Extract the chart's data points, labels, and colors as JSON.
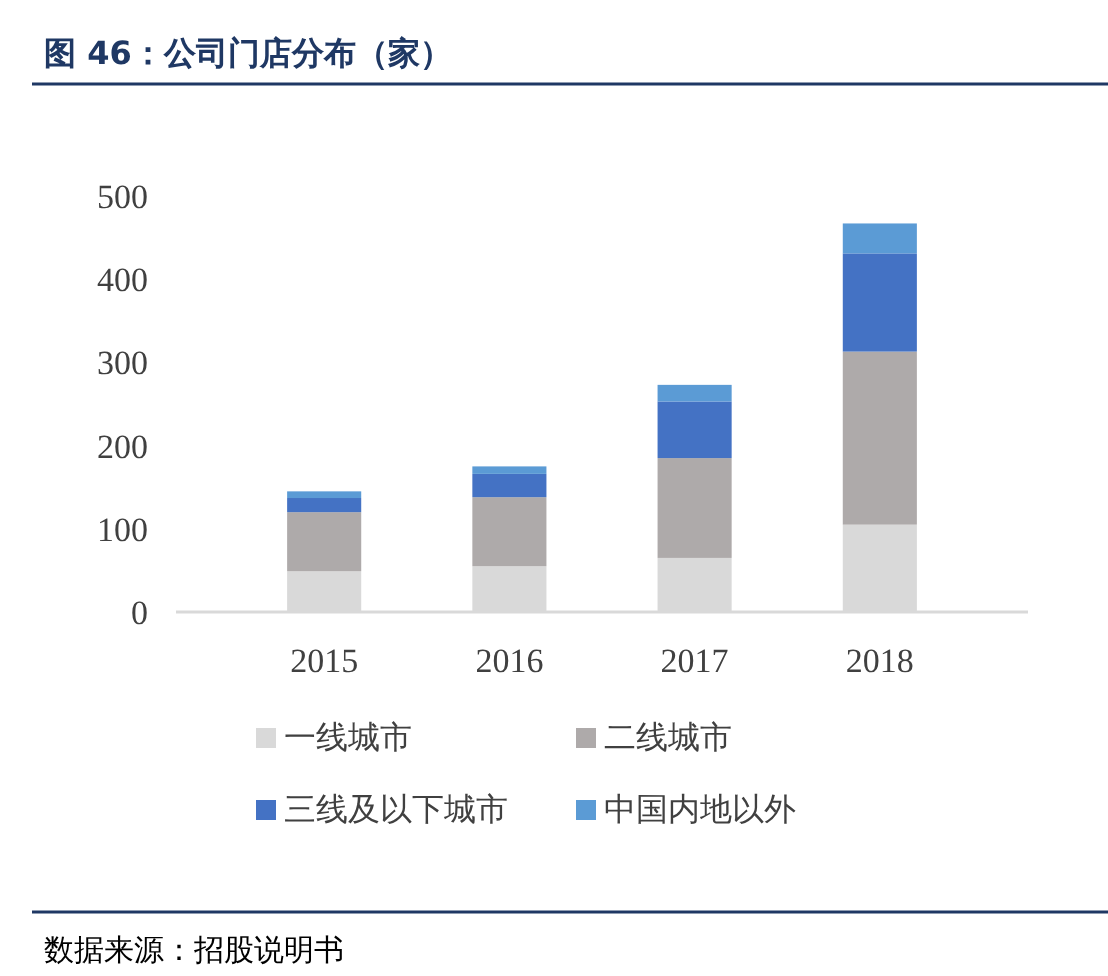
{
  "chart_data": {
    "type": "bar",
    "title": "图 46：公司门店分布（家）",
    "stacked": true,
    "categories": [
      "2015",
      "2016",
      "2017",
      "2018"
    ],
    "series": [
      {
        "name": "一线城市",
        "color": "#d9d9d9",
        "values": [
          49,
          55,
          65,
          105
        ]
      },
      {
        "name": "二线城市",
        "color": "#aeaaaa",
        "values": [
          71,
          83,
          120,
          208
        ]
      },
      {
        "name": "三线及以下城市",
        "color": "#4472c4",
        "values": [
          17,
          28,
          68,
          118
        ]
      },
      {
        "name": "中国内地以外",
        "color": "#5b9bd5",
        "values": [
          8,
          9,
          20,
          36
        ]
      }
    ],
    "ylim": [
      0,
      500
    ],
    "yticks": [
      0,
      100,
      200,
      300,
      400,
      500
    ],
    "grid": false,
    "legend": "bottom",
    "annotations": [
      "数据来源：招股说明书"
    ]
  }
}
